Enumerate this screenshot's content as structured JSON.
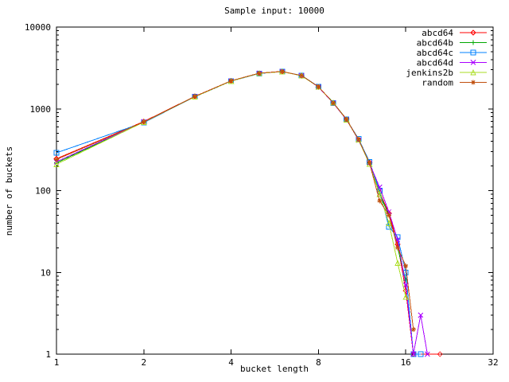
{
  "title": "Sample input: 10000",
  "chart_data": {
    "type": "line",
    "title": "Sample input: 10000",
    "xlabel": "bucket length",
    "ylabel": "number of buckets",
    "x_scale": "log2",
    "y_scale": "log10",
    "xlim": [
      1,
      32
    ],
    "ylim": [
      1,
      10000
    ],
    "x_ticks": [
      1,
      2,
      4,
      8,
      16,
      32
    ],
    "y_ticks": [
      1,
      10,
      100,
      1000,
      10000
    ],
    "grid": false,
    "legend_position": "top-right-inside",
    "background_color": "#ffffff",
    "frame_color": "#000000",
    "series": [
      {
        "name": "abcd64",
        "color": "#ff0000",
        "marker": "diamond",
        "points": [
          [
            1,
            245
          ],
          [
            2,
            700
          ],
          [
            3,
            1420
          ],
          [
            4,
            2200
          ],
          [
            5,
            2730
          ],
          [
            6,
            2870
          ],
          [
            7,
            2540
          ],
          [
            8,
            1850
          ],
          [
            9,
            1180
          ],
          [
            10,
            750
          ],
          [
            11,
            420
          ],
          [
            12,
            220
          ],
          [
            13,
            95
          ],
          [
            14,
            53
          ],
          [
            15,
            22
          ],
          [
            16,
            6
          ],
          [
            17,
            1
          ],
          [
            21,
            1
          ]
        ]
      },
      {
        "name": "abcd64b",
        "color": "#00a800",
        "marker": "plus",
        "points": [
          [
            1,
            218
          ],
          [
            2,
            690
          ],
          [
            3,
            1410
          ],
          [
            4,
            2190
          ],
          [
            5,
            2720
          ],
          [
            6,
            2860
          ],
          [
            7,
            2530
          ],
          [
            8,
            1860
          ],
          [
            9,
            1190
          ],
          [
            10,
            745
          ],
          [
            11,
            425
          ],
          [
            12,
            218
          ],
          [
            13,
            92
          ],
          [
            14,
            50
          ],
          [
            15,
            20
          ],
          [
            16,
            8
          ]
        ]
      },
      {
        "name": "abcd64c",
        "color": "#0080ff",
        "marker": "square",
        "points": [
          [
            1,
            290
          ],
          [
            2,
            680
          ],
          [
            3,
            1400
          ],
          [
            4,
            2180
          ],
          [
            5,
            2700
          ],
          [
            6,
            2850
          ],
          [
            7,
            2560
          ],
          [
            8,
            1870
          ],
          [
            9,
            1170
          ],
          [
            10,
            740
          ],
          [
            11,
            430
          ],
          [
            12,
            225
          ],
          [
            13,
            100
          ],
          [
            14,
            36
          ],
          [
            15,
            27
          ],
          [
            16,
            10
          ],
          [
            17,
            1
          ],
          [
            18,
            1
          ]
        ]
      },
      {
        "name": "abcd64d",
        "color": "#aa00ff",
        "marker": "cross",
        "points": [
          [
            1,
            225
          ],
          [
            2,
            695
          ],
          [
            3,
            1415
          ],
          [
            4,
            2195
          ],
          [
            5,
            2725
          ],
          [
            6,
            2855
          ],
          [
            7,
            2545
          ],
          [
            8,
            1845
          ],
          [
            9,
            1175
          ],
          [
            10,
            735
          ],
          [
            11,
            415
          ],
          [
            12,
            215
          ],
          [
            13,
            110
          ],
          [
            14,
            55
          ],
          [
            15,
            25
          ],
          [
            16,
            7
          ],
          [
            17,
            1
          ],
          [
            18,
            3
          ],
          [
            19,
            1
          ]
        ]
      },
      {
        "name": "jenkins2b",
        "color": "#aadd22",
        "marker": "triangle",
        "points": [
          [
            1,
            210
          ],
          [
            2,
            688
          ],
          [
            3,
            1405
          ],
          [
            4,
            2185
          ],
          [
            5,
            2715
          ],
          [
            6,
            2845
          ],
          [
            7,
            2535
          ],
          [
            8,
            1855
          ],
          [
            9,
            1185
          ],
          [
            10,
            738
          ],
          [
            11,
            418
          ],
          [
            12,
            212
          ],
          [
            13,
            90
          ],
          [
            14,
            40
          ],
          [
            15,
            13
          ],
          [
            16,
            5
          ]
        ]
      },
      {
        "name": "random",
        "color": "#c0500f",
        "marker": "asterisk",
        "points": [
          [
            1,
            240
          ],
          [
            2,
            692
          ],
          [
            3,
            1418
          ],
          [
            4,
            2205
          ],
          [
            5,
            2735
          ],
          [
            6,
            2865
          ],
          [
            7,
            2550
          ],
          [
            8,
            1865
          ],
          [
            9,
            1182
          ],
          [
            10,
            742
          ],
          [
            11,
            422
          ],
          [
            12,
            217
          ],
          [
            13,
            75
          ],
          [
            14,
            50
          ],
          [
            15,
            20
          ],
          [
            16,
            12
          ],
          [
            17,
            2
          ]
        ]
      }
    ]
  }
}
